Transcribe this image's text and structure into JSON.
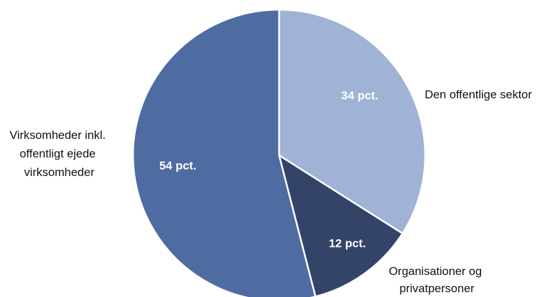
{
  "chart_data": {
    "type": "pie",
    "start_angle_deg": 0,
    "direction": "clockwise",
    "slices": [
      {
        "category": "Den offentlige sektor",
        "value": 34,
        "value_label": "34 pct.",
        "category_lines": [
          "Den offentlige sektor"
        ],
        "color": "#a0b2d6"
      },
      {
        "category": "Organisationer og privatpersoner",
        "value": 12,
        "value_label": "12 pct.",
        "category_lines": [
          "Organisationer og",
          "privatpersoner"
        ],
        "color": "#344468"
      },
      {
        "category": "Virksomheder inkl. offentligt ejede virksomheder",
        "value": 54,
        "value_label": "54 pct.",
        "category_lines": [
          "Virksomheder inkl.",
          "offentligt ejede",
          "virksomheder"
        ],
        "color": "#4f6ca2"
      }
    ],
    "slice_border_color": "#ffffff",
    "legend": "none"
  }
}
